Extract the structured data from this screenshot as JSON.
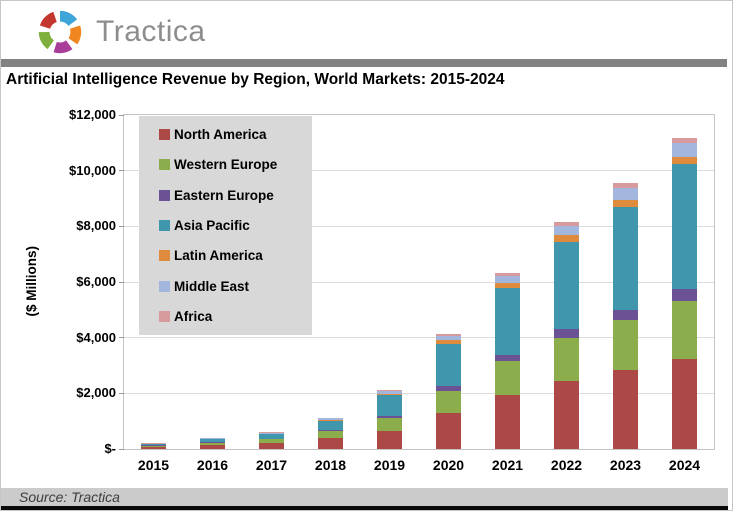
{
  "header": {
    "brand": "Tractica"
  },
  "logo": {
    "petal_colors": [
      "#3ea5d8",
      "#f0861f",
      "#a83e99",
      "#7faf3c",
      "#c4372c"
    ]
  },
  "title": "Artificial Intelligence Revenue by Region, World Markets: 2015-2024",
  "source": {
    "text": "Source: Tractica"
  },
  "chart_data": {
    "type": "bar",
    "stacked": true,
    "title": "Artificial Intelligence Revenue by Region, World Markets: 2015-2024",
    "ylabel": "($ Millions)",
    "xlabel": "",
    "ylim": [
      0,
      12000
    ],
    "grid": "horizontal",
    "legend_position": "upper-left-inside",
    "categories": [
      "2015",
      "2016",
      "2017",
      "2018",
      "2019",
      "2020",
      "2021",
      "2022",
      "2023",
      "2024"
    ],
    "y_ticks": [
      {
        "label": "$12,000",
        "value": 12000
      },
      {
        "label": "$10,000",
        "value": 10000
      },
      {
        "label": "$8,000",
        "value": 8000
      },
      {
        "label": "$6,000",
        "value": 6000
      },
      {
        "label": "$4,000",
        "value": 4000
      },
      {
        "label": "$2,000",
        "value": 2000
      },
      {
        "label": "$-",
        "value": 0
      }
    ],
    "series": [
      {
        "name": "North America",
        "color": "#ac4845",
        "values": [
          75,
          140,
          210,
          390,
          640,
          1300,
          1950,
          2450,
          2850,
          3250
        ]
      },
      {
        "name": "Western Europe",
        "color": "#8cad4b",
        "values": [
          50,
          90,
          140,
          260,
          480,
          800,
          1200,
          1550,
          1800,
          2080
        ]
      },
      {
        "name": "Eastern Europe",
        "color": "#6a5294",
        "values": [
          5,
          10,
          15,
          30,
          60,
          170,
          240,
          300,
          340,
          420
        ]
      },
      {
        "name": "Asia Pacific",
        "color": "#4096ac",
        "values": [
          55,
          110,
          170,
          340,
          760,
          1500,
          2400,
          3150,
          3700,
          4480
        ]
      },
      {
        "name": "Latin America",
        "color": "#de8b3e",
        "values": [
          5,
          10,
          15,
          25,
          50,
          140,
          180,
          230,
          250,
          265
        ]
      },
      {
        "name": "Middle East",
        "color": "#a3b7de",
        "values": [
          8,
          20,
          35,
          55,
          100,
          160,
          250,
          340,
          440,
          490
        ]
      },
      {
        "name": "Africa",
        "color": "#d79b9e",
        "values": [
          4,
          8,
          12,
          18,
          35,
          65,
          110,
          150,
          180,
          200
        ]
      }
    ]
  }
}
